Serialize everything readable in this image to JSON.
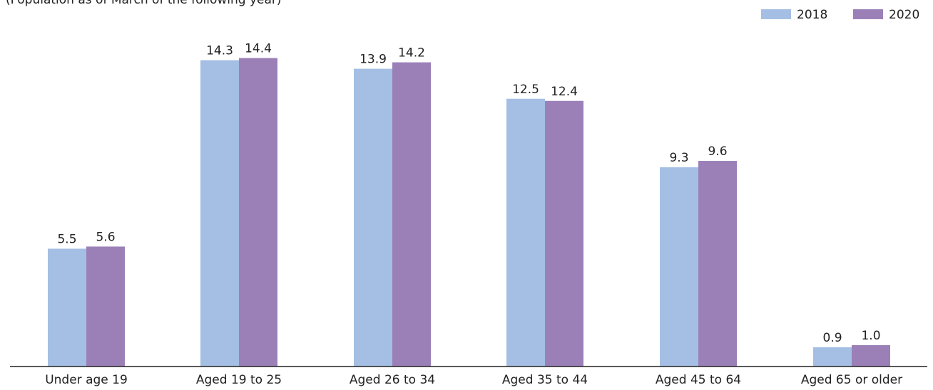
{
  "chart_data": {
    "type": "bar",
    "subtitle": "(Population as of March of the following year)",
    "categories": [
      "Under age 19",
      "Aged 19 to 25",
      "Aged 26 to 34",
      "Aged 35 to 44",
      "Aged 45 to 64",
      "Aged 65 or older"
    ],
    "series": [
      {
        "name": "2018",
        "color": "#a4bfe3",
        "values": [
          5.5,
          14.3,
          13.9,
          12.5,
          9.3,
          0.9
        ],
        "labels": [
          "5.5",
          "14.3",
          "13.9",
          "12.5",
          "9.3",
          "0.9"
        ]
      },
      {
        "name": "2020",
        "color": "#9b80b8",
        "values": [
          5.6,
          14.4,
          14.2,
          12.4,
          9.6,
          1.0
        ],
        "labels": [
          "5.6",
          "14.4",
          "14.2",
          "12.4",
          "9.6",
          "1.0"
        ]
      }
    ],
    "ylim": [
      0,
      15
    ],
    "legend_position": "top-right",
    "grid": false
  }
}
